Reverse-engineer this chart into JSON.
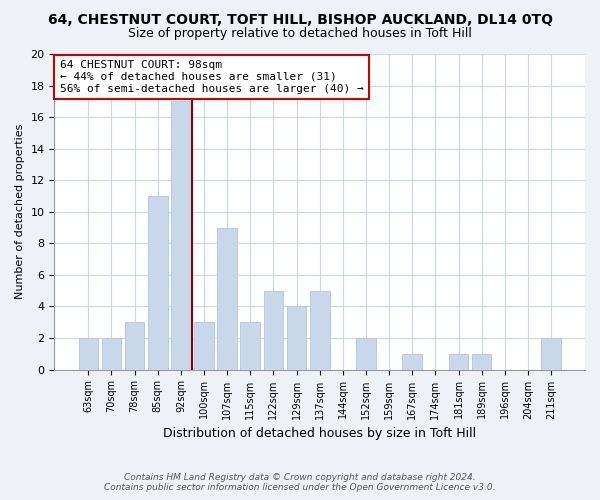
{
  "title": "64, CHESTNUT COURT, TOFT HILL, BISHOP AUCKLAND, DL14 0TQ",
  "subtitle": "Size of property relative to detached houses in Toft Hill",
  "xlabel": "Distribution of detached houses by size in Toft Hill",
  "ylabel": "Number of detached properties",
  "categories": [
    "63sqm",
    "70sqm",
    "78sqm",
    "85sqm",
    "92sqm",
    "100sqm",
    "107sqm",
    "115sqm",
    "122sqm",
    "129sqm",
    "137sqm",
    "144sqm",
    "152sqm",
    "159sqm",
    "167sqm",
    "174sqm",
    "181sqm",
    "189sqm",
    "196sqm",
    "204sqm",
    "211sqm"
  ],
  "values": [
    2,
    2,
    3,
    11,
    17,
    3,
    9,
    3,
    5,
    4,
    5,
    0,
    2,
    0,
    1,
    0,
    1,
    1,
    0,
    0,
    2
  ],
  "bar_color": "#c8d8ea",
  "bar_edge_color": "#b0c8e0",
  "property_line_color": "#8b0000",
  "property_line_index": 5,
  "annotation_line1": "64 CHESTNUT COURT: 98sqm",
  "annotation_line2": "← 44% of detached houses are smaller (31)",
  "annotation_line3": "56% of semi-detached houses are larger (40) →",
  "annotation_box_facecolor": "#ffffff",
  "annotation_box_edgecolor": "#cc0000",
  "ylim": [
    0,
    20
  ],
  "yticks": [
    0,
    2,
    4,
    6,
    8,
    10,
    12,
    14,
    16,
    18,
    20
  ],
  "footer1": "Contains HM Land Registry data © Crown copyright and database right 2024.",
  "footer2": "Contains public sector information licensed under the Open Government Licence v3.0.",
  "bg_color": "#eef2f7",
  "plot_bg_color": "#ffffff",
  "grid_color": "#c8d8ea",
  "title_fontsize": 10,
  "subtitle_fontsize": 9
}
